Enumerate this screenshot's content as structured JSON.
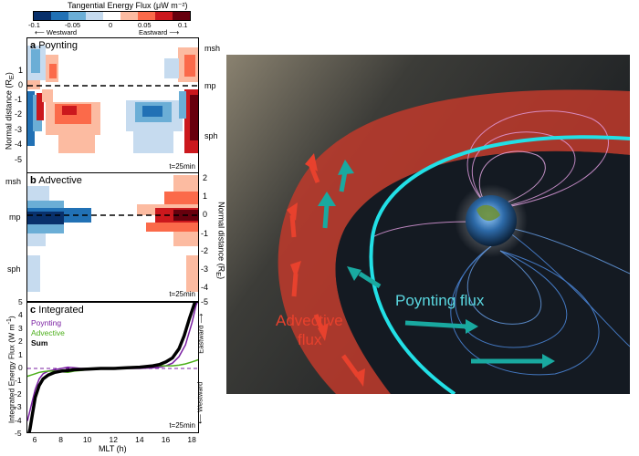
{
  "colorbar": {
    "title": "Tangential Energy Flux (μW m⁻²)",
    "ticks": [
      "-0.1",
      "-0.05",
      "0",
      "0.05",
      "0.1"
    ],
    "westward": "Westward",
    "eastward": "Eastward",
    "colors": [
      "#08306b",
      "#2171b5",
      "#6baed6",
      "#c6dbef",
      "#ffffff",
      "#fcbba1",
      "#fb6a4a",
      "#cb181d",
      "#67000d"
    ]
  },
  "panel_a": {
    "letter": "a",
    "title": "Poynting",
    "time": "t=25min",
    "ylabel": "Normal distance (R",
    "ylabel_sub": "E",
    "ylabel_end": ")",
    "yticks": [
      "1",
      "0",
      "-1",
      "-2",
      "-3",
      "-4",
      "-5"
    ],
    "right_labels": [
      "msh",
      "mp",
      "sph"
    ]
  },
  "panel_b": {
    "letter": "b",
    "title": "Advective",
    "time": "t=25min",
    "ylabel": "Normal distance (R",
    "ylabel_sub": "E",
    "ylabel_end": ")",
    "yticks": [
      "2",
      "1",
      "0",
      "-1",
      "-2",
      "-3",
      "-4",
      "-5"
    ],
    "left_labels": [
      "msh",
      "mp",
      "sph"
    ]
  },
  "panel_c": {
    "letter": "c",
    "title": "Integrated",
    "time": "t=25min",
    "ylabel": "Integrated Energy Flux (W m",
    "ylabel_sup": "-1",
    "ylabel_end": ")",
    "xlabel": "MLT (h)",
    "eastward": "Eastward",
    "westward": "Westward",
    "legend": [
      {
        "label": "Poynting",
        "color": "#7a1fa2"
      },
      {
        "label": "Advective",
        "color": "#4caf1a"
      },
      {
        "label": "Sum",
        "color": "#000000"
      }
    ]
  },
  "chart_data": {
    "type": "line",
    "title": "Integrated",
    "xlabel": "MLT (h)",
    "ylabel": "Integrated Energy Flux (W m-1)",
    "xlim": [
      5.4,
      18.6
    ],
    "ylim": [
      -5,
      5
    ],
    "xticks": [
      6,
      8,
      10,
      12,
      14,
      16,
      18
    ],
    "yticks": [
      -5,
      -4,
      -3,
      -2,
      -1,
      0,
      1,
      2,
      3,
      4,
      5
    ],
    "series": [
      {
        "name": "Poynting",
        "color": "#7a1fa2",
        "x": [
          5.4,
          5.7,
          6.0,
          6.3,
          6.6,
          7.0,
          7.5,
          8.0,
          8.5,
          9.0,
          9.5,
          10,
          11,
          12,
          13,
          14,
          15,
          15.5,
          16,
          16.5,
          17,
          17.5,
          18,
          18.3,
          18.6
        ],
        "y": [
          -4.0,
          -2.8,
          -1.6,
          -0.8,
          -0.4,
          -0.2,
          -0.1,
          0.0,
          0.1,
          0.05,
          0.0,
          0.0,
          0.0,
          0.0,
          0.0,
          0.0,
          0.05,
          0.1,
          0.2,
          0.4,
          0.9,
          1.8,
          3.5,
          4.8,
          5.5
        ]
      },
      {
        "name": "Advective",
        "color": "#4caf1a",
        "x": [
          5.4,
          5.7,
          6.0,
          6.3,
          6.6,
          7.0,
          7.5,
          8.0,
          8.5,
          9.0,
          9.5,
          10,
          11,
          12,
          13,
          14,
          15,
          15.5,
          16,
          16.5,
          17,
          17.5,
          18,
          18.3,
          18.6
        ],
        "y": [
          -0.6,
          -0.5,
          -0.4,
          -0.3,
          -0.25,
          -0.2,
          -0.2,
          -0.25,
          -0.3,
          -0.2,
          -0.15,
          -0.1,
          -0.05,
          0.0,
          0.05,
          0.1,
          0.15,
          0.2,
          0.2,
          0.2,
          0.25,
          0.35,
          0.5,
          0.6,
          0.7
        ]
      },
      {
        "name": "Sum",
        "color": "#000000",
        "x": [
          5.4,
          5.6,
          5.8,
          6.0,
          6.3,
          6.6,
          7.0,
          7.5,
          8.0,
          8.5,
          9.0,
          10,
          11,
          12,
          13,
          14,
          15,
          15.5,
          16,
          16.5,
          17,
          17.4,
          17.8,
          18.2,
          18.6
        ],
        "y": [
          -5.5,
          -4.6,
          -3.4,
          -2.2,
          -1.3,
          -0.8,
          -0.5,
          -0.3,
          -0.2,
          -0.15,
          -0.1,
          -0.05,
          0.0,
          0.0,
          0.05,
          0.1,
          0.2,
          0.3,
          0.5,
          0.8,
          1.5,
          2.5,
          3.8,
          5.0,
          6.0
        ]
      }
    ]
  },
  "illustration": {
    "advective_label_line1": "Advective",
    "advective_label_line2": "flux",
    "poynting_label": "Poynting flux",
    "colors": {
      "space": "#1b1f24",
      "magnetosheath": "#c0392b",
      "magnetopause": "#22e0e6",
      "fieldlines_day": "#e6a0e6",
      "fieldlines_night": "#4f8fe8",
      "arrows": "#19a9a0"
    }
  }
}
